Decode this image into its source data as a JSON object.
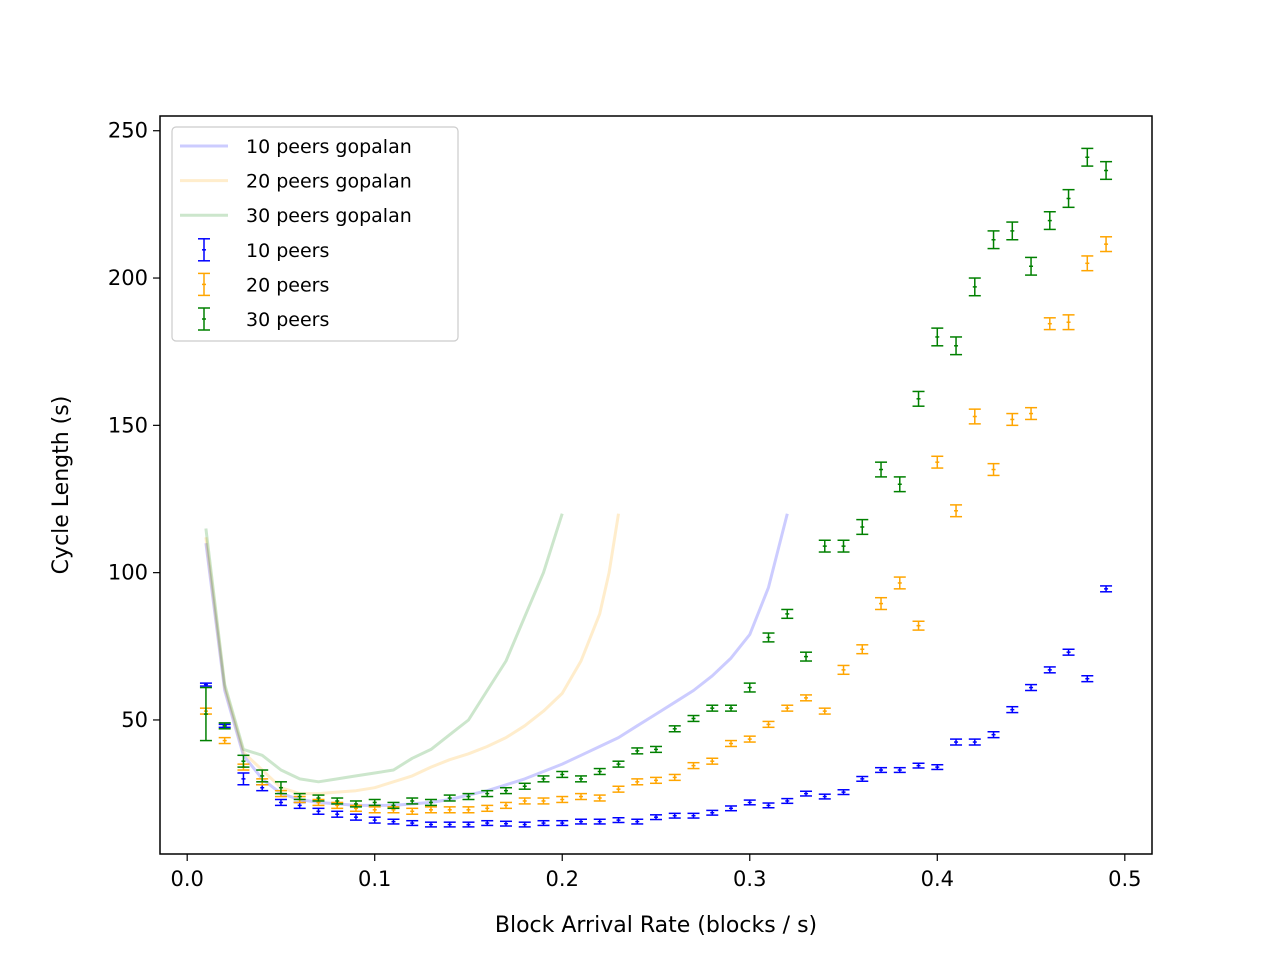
{
  "chart_data": {
    "type": "scatter",
    "title": "",
    "xlabel": "Block Arrival Rate (blocks / s)",
    "ylabel": "Cycle Length (s)",
    "xlim": [
      -0.0145,
      0.5145
    ],
    "ylim": [
      4.5,
      255
    ],
    "xticks": [
      0.0,
      0.1,
      0.2,
      0.3,
      0.4,
      0.5
    ],
    "xtick_labels": [
      "0.0",
      "0.1",
      "0.2",
      "0.3",
      "0.4",
      "0.5"
    ],
    "yticks": [
      50,
      100,
      150,
      200,
      250
    ],
    "ytick_labels": [
      "50",
      "100",
      "150",
      "200",
      "250"
    ],
    "grid": false,
    "legend_position": "top-left",
    "lines": [
      {
        "name": "10 peers gopalan",
        "color": "#0000ff",
        "alpha": 0.2,
        "x": [
          0.01,
          0.02,
          0.03,
          0.04,
          0.05,
          0.06,
          0.07,
          0.08,
          0.09,
          0.1,
          0.11,
          0.12,
          0.13,
          0.14,
          0.15,
          0.16,
          0.17,
          0.18,
          0.19,
          0.2,
          0.21,
          0.22,
          0.23,
          0.24,
          0.25,
          0.26,
          0.27,
          0.28,
          0.29,
          0.3,
          0.31,
          0.32
        ],
        "y": [
          110,
          60,
          38,
          30,
          25,
          23,
          22,
          21.5,
          21,
          21,
          21,
          21.5,
          22,
          23,
          24.5,
          26,
          28,
          30,
          32.5,
          35,
          38,
          41,
          44,
          48,
          52,
          56,
          60,
          65,
          71,
          79,
          95,
          120
        ]
      },
      {
        "name": "20 peers gopalan",
        "color": "#ffa500",
        "alpha": 0.2,
        "x": [
          0.01,
          0.02,
          0.03,
          0.04,
          0.05,
          0.06,
          0.07,
          0.08,
          0.09,
          0.1,
          0.11,
          0.12,
          0.13,
          0.14,
          0.15,
          0.16,
          0.17,
          0.18,
          0.19,
          0.2,
          0.21,
          0.22,
          0.225,
          0.23
        ],
        "y": [
          112,
          61,
          39,
          33,
          27,
          25,
          25,
          25.5,
          26,
          27,
          29,
          31,
          34,
          36.5,
          38.5,
          41,
          44,
          48,
          53,
          59,
          70,
          86,
          100,
          120
        ]
      },
      {
        "name": "30 peers gopalan",
        "color": "#008000",
        "alpha": 0.2,
        "x": [
          0.01,
          0.02,
          0.03,
          0.04,
          0.05,
          0.06,
          0.07,
          0.08,
          0.09,
          0.1,
          0.11,
          0.12,
          0.13,
          0.14,
          0.15,
          0.16,
          0.17,
          0.18,
          0.19,
          0.2
        ],
        "y": [
          115,
          62,
          40,
          38,
          33,
          30,
          29,
          30,
          31,
          32,
          33,
          37,
          40,
          45,
          50,
          60,
          70,
          85,
          100,
          120
        ]
      }
    ],
    "series": [
      {
        "name": "10 peers",
        "color": "#0000ff",
        "x": [
          0.01,
          0.02,
          0.03,
          0.04,
          0.05,
          0.06,
          0.07,
          0.08,
          0.09,
          0.1,
          0.11,
          0.12,
          0.13,
          0.14,
          0.15,
          0.16,
          0.17,
          0.18,
          0.19,
          0.2,
          0.21,
          0.22,
          0.23,
          0.24,
          0.25,
          0.26,
          0.27,
          0.28,
          0.29,
          0.3,
          0.31,
          0.32,
          0.33,
          0.34,
          0.35,
          0.36,
          0.37,
          0.38,
          0.39,
          0.4,
          0.41,
          0.42,
          0.43,
          0.44,
          0.45,
          0.46,
          0.47,
          0.48,
          0.49
        ],
        "y": [
          62,
          48,
          30,
          27,
          22,
          21,
          19,
          18,
          17,
          16,
          15.5,
          15,
          14.5,
          14.5,
          14.5,
          15,
          14.8,
          14.5,
          15,
          15,
          15.5,
          15.5,
          16,
          15.5,
          17,
          17.5,
          17.5,
          18.5,
          20,
          22,
          21,
          22.5,
          25,
          24,
          25.5,
          30,
          33,
          33,
          34.5,
          34,
          42.5,
          42.5,
          45,
          53.5,
          61,
          67,
          73,
          64,
          94.5
        ],
        "err": [
          0.5,
          0.5,
          2,
          1,
          1,
          1,
          1,
          1,
          1,
          1,
          0.8,
          0.8,
          0.8,
          0.8,
          0.8,
          0.8,
          0.8,
          0.8,
          0.8,
          0.8,
          0.8,
          0.8,
          0.8,
          0.8,
          0.8,
          0.8,
          0.8,
          0.8,
          0.8,
          0.8,
          0.8,
          0.8,
          0.8,
          0.8,
          0.8,
          0.8,
          0.8,
          0.8,
          0.8,
          0.8,
          1,
          1,
          1,
          1,
          1,
          1,
          1,
          1,
          1
        ]
      },
      {
        "name": "20 peers",
        "color": "#ffa500",
        "x": [
          0.01,
          0.02,
          0.03,
          0.04,
          0.05,
          0.06,
          0.07,
          0.08,
          0.09,
          0.1,
          0.11,
          0.12,
          0.13,
          0.14,
          0.15,
          0.16,
          0.17,
          0.18,
          0.19,
          0.2,
          0.21,
          0.22,
          0.23,
          0.24,
          0.25,
          0.26,
          0.27,
          0.28,
          0.29,
          0.3,
          0.31,
          0.32,
          0.33,
          0.34,
          0.35,
          0.36,
          0.37,
          0.38,
          0.39,
          0.4,
          0.41,
          0.42,
          0.43,
          0.44,
          0.45,
          0.46,
          0.47,
          0.48,
          0.49
        ],
        "y": [
          53,
          43,
          34,
          29,
          25,
          23,
          22,
          21,
          20,
          19.5,
          19.5,
          19,
          19.5,
          19.5,
          19.5,
          20,
          21,
          22.5,
          22.5,
          23,
          24,
          23.5,
          26.5,
          29,
          29.5,
          30.5,
          34.5,
          36,
          42,
          43.5,
          48.5,
          54,
          57.5,
          53,
          67,
          74,
          89.5,
          96.5,
          82,
          137.5,
          121,
          153,
          135,
          152,
          154,
          184.5,
          185,
          205,
          211.5
        ],
        "err": [
          1,
          1,
          1,
          1,
          1,
          1,
          1,
          1,
          1,
          1,
          1,
          1,
          1,
          1,
          1,
          1,
          1,
          1,
          1,
          1,
          1,
          1,
          1,
          1,
          1,
          1,
          1,
          1,
          1,
          1,
          1,
          1,
          1,
          1,
          1.5,
          1.5,
          2,
          2,
          1.5,
          2,
          2,
          2.5,
          2,
          2,
          2,
          2,
          2.5,
          2.5,
          2.5
        ]
      },
      {
        "name": "30 peers",
        "color": "#008000",
        "x": [
          0.01,
          0.02,
          0.03,
          0.04,
          0.05,
          0.06,
          0.07,
          0.08,
          0.09,
          0.1,
          0.11,
          0.12,
          0.13,
          0.14,
          0.15,
          0.16,
          0.17,
          0.18,
          0.19,
          0.2,
          0.21,
          0.22,
          0.23,
          0.24,
          0.25,
          0.26,
          0.27,
          0.28,
          0.29,
          0.3,
          0.31,
          0.32,
          0.33,
          0.34,
          0.35,
          0.36,
          0.37,
          0.38,
          0.39,
          0.4,
          0.41,
          0.42,
          0.43,
          0.44,
          0.45,
          0.46,
          0.47,
          0.48,
          0.49
        ],
        "y": [
          52,
          48,
          36,
          31,
          27,
          24,
          23.5,
          22.5,
          21.5,
          22,
          21,
          22.5,
          22,
          23.5,
          24,
          25,
          26,
          27.5,
          30,
          31.5,
          30,
          32.5,
          35,
          39.5,
          40,
          47,
          50.5,
          54,
          54,
          61,
          78,
          86,
          71.5,
          109,
          109,
          115.5,
          135,
          130,
          159,
          180,
          177,
          197,
          213,
          216,
          204,
          219.5,
          227,
          241,
          236.5
        ],
        "err": [
          9,
          1,
          2,
          2,
          2,
          1,
          1,
          1,
          1,
          1,
          1,
          1,
          1,
          1,
          1,
          1,
          1,
          1,
          1,
          1,
          1,
          1,
          1,
          1,
          1,
          1,
          1,
          1,
          1,
          1.5,
          1.5,
          1.5,
          1.5,
          2,
          2,
          2.5,
          2.5,
          2.5,
          2.5,
          3,
          3,
          3,
          3,
          3,
          3,
          3,
          3,
          3,
          3
        ]
      }
    ]
  }
}
